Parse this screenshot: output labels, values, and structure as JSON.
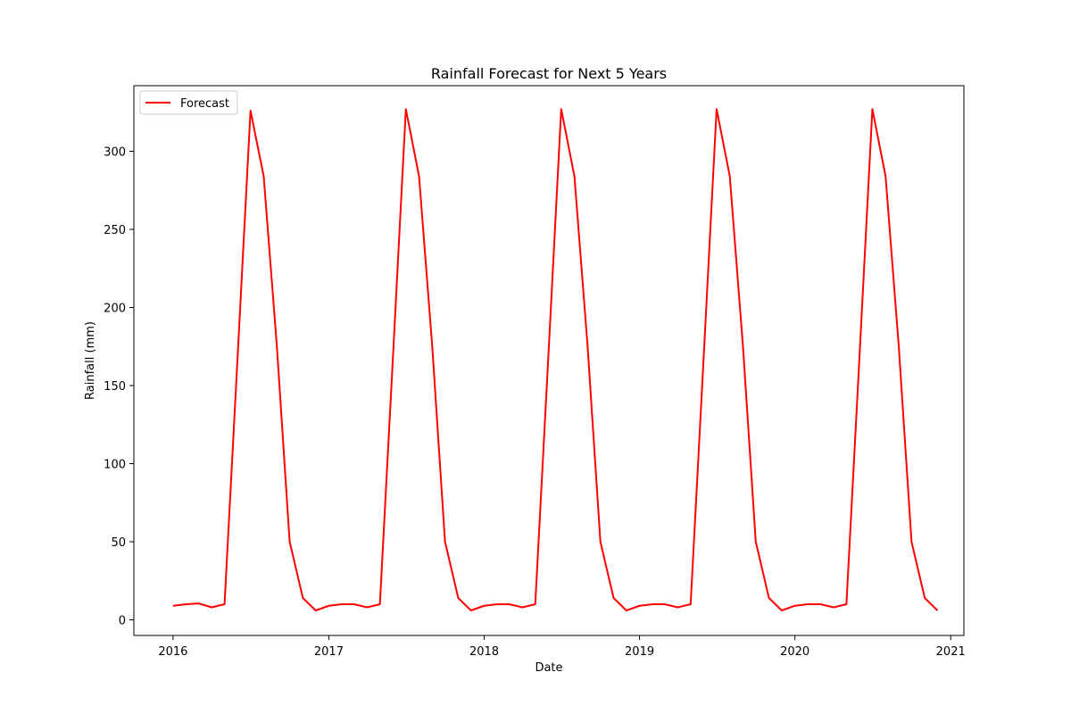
{
  "chart_data": {
    "type": "line",
    "title": "Rainfall Forecast for Next 5 Years",
    "xlabel": "Date",
    "ylabel": "Rainfall (mm)",
    "xlim": [
      "2015-10-01",
      "2021-02-01"
    ],
    "ylim": [
      -10,
      342
    ],
    "x_ticks": [
      "2016",
      "2017",
      "2018",
      "2019",
      "2020",
      "2021"
    ],
    "y_ticks": [
      0,
      50,
      100,
      150,
      200,
      250,
      300
    ],
    "grid": false,
    "legend": {
      "position": "top-left",
      "entries": [
        "Forecast"
      ]
    },
    "series": [
      {
        "name": "Forecast",
        "color": "#ff0000",
        "x": [
          "2016-01",
          "2016-02",
          "2016-03",
          "2016-04",
          "2016-05",
          "2016-06",
          "2016-07",
          "2016-08",
          "2016-09",
          "2016-10",
          "2016-11",
          "2016-12",
          "2017-01",
          "2017-02",
          "2017-03",
          "2017-04",
          "2017-05",
          "2017-06",
          "2017-07",
          "2017-08",
          "2017-09",
          "2017-10",
          "2017-11",
          "2017-12",
          "2018-01",
          "2018-02",
          "2018-03",
          "2018-04",
          "2018-05",
          "2018-06",
          "2018-07",
          "2018-08",
          "2018-09",
          "2018-10",
          "2018-11",
          "2018-12",
          "2019-01",
          "2019-02",
          "2019-03",
          "2019-04",
          "2019-05",
          "2019-06",
          "2019-07",
          "2019-08",
          "2019-09",
          "2019-10",
          "2019-11",
          "2019-12",
          "2020-01",
          "2020-02",
          "2020-03",
          "2020-04",
          "2020-05",
          "2020-06",
          "2020-07",
          "2020-08",
          "2020-09",
          "2020-10",
          "2020-11",
          "2020-12"
        ],
        "values": [
          9,
          10,
          10.5,
          8,
          10,
          170,
          326,
          284,
          175,
          50,
          14,
          6,
          9,
          10,
          10,
          8,
          10,
          170,
          327,
          284,
          175,
          50,
          14,
          6,
          9,
          10,
          10,
          8,
          10,
          170,
          327,
          284,
          175,
          50,
          14,
          6,
          9,
          10,
          10,
          8,
          10,
          170,
          327,
          284,
          175,
          50,
          14,
          6,
          9,
          10,
          10,
          8,
          10,
          170,
          327,
          284,
          175,
          50,
          14,
          6
        ]
      }
    ]
  }
}
